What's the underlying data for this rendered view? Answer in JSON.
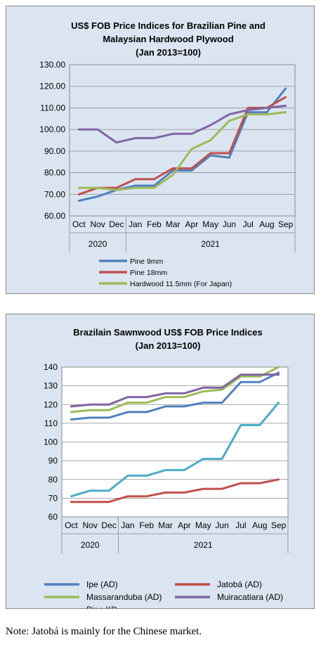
{
  "note": "Note: Jatobá is mainly for the Chinese market.",
  "chart_data": [
    {
      "type": "line",
      "title_lines": [
        "US$ FOB Price Indices for Brazilian Pine and",
        "Malaysian Hardwood Plywood",
        "(Jan 2013=100)"
      ],
      "categories": [
        "Oct",
        "Nov",
        "Dec",
        "Jan",
        "Feb",
        "Mar",
        "Apr",
        "May",
        "Jun",
        "Jul",
        "Aug",
        "Sep"
      ],
      "year_groups": [
        {
          "label": "2020",
          "span": 3
        },
        {
          "label": "2021",
          "span": 9
        }
      ],
      "ylim": [
        60,
        130
      ],
      "yticks": [
        "60.00",
        "70.00",
        "80.00",
        "90.00",
        "100.00",
        "110.00",
        "120.00",
        "130.00"
      ],
      "grid": true,
      "legend_position": "bottom",
      "series": [
        {
          "name": "Pine 9mm",
          "color": "#4f81bd",
          "values": [
            67,
            69,
            72,
            74,
            74,
            81,
            81,
            88,
            87,
            108,
            108,
            119
          ]
        },
        {
          "name": "Pine 18mm",
          "color": "#c0504d",
          "values": [
            70,
            73,
            73,
            77,
            77,
            82,
            82,
            89,
            89,
            110,
            110,
            115
          ]
        },
        {
          "name": "Hardwood 11.5mm (For Japan)",
          "color": "#9bbb59",
          "values": [
            73,
            73,
            72,
            73,
            73,
            79,
            91,
            95,
            104,
            107,
            107,
            108
          ]
        },
        {
          "name": "",
          "color": "#8064a2",
          "values": [
            100,
            100,
            94,
            96,
            96,
            98,
            98,
            102,
            107,
            109,
            110,
            111
          ]
        }
      ]
    },
    {
      "type": "line",
      "title_lines": [
        "Brazilain Sawnwood US$ FOB Price Indices",
        "(Jan 2013=100)"
      ],
      "categories": [
        "Oct",
        "Nov",
        "Dec",
        "Jan",
        "Feb",
        "Mar",
        "Apr",
        "May",
        "Jun",
        "Jul",
        "Aug",
        "Sep"
      ],
      "year_groups": [
        {
          "label": "2020",
          "span": 3
        },
        {
          "label": "2021",
          "span": 9
        }
      ],
      "ylim": [
        60,
        140
      ],
      "yticks": [
        "60",
        "70",
        "80",
        "90",
        "100",
        "110",
        "120",
        "130",
        "140"
      ],
      "grid": true,
      "legend_position": "bottom",
      "series": [
        {
          "name": "Ipe (AD)",
          "color": "#4f81bd",
          "values": [
            112,
            113,
            113,
            116,
            116,
            119,
            119,
            121,
            121,
            132,
            132,
            137
          ]
        },
        {
          "name": "Jatobá (AD)",
          "color": "#c0504d",
          "values": [
            68,
            68,
            68,
            71,
            71,
            73,
            73,
            75,
            75,
            78,
            78,
            80
          ]
        },
        {
          "name": "Massaranduba (AD)",
          "color": "#9bbb59",
          "values": [
            116,
            117,
            117,
            121,
            121,
            124,
            124,
            127,
            128,
            135,
            135,
            140
          ]
        },
        {
          "name": "Muiracatiara (AD)",
          "color": "#8064a2",
          "values": [
            119,
            120,
            120,
            124,
            124,
            126,
            126,
            129,
            129,
            136,
            136,
            136
          ]
        },
        {
          "name": "Pine KD",
          "color": "#4bacc6",
          "values": [
            71,
            74,
            74,
            82,
            82,
            85,
            85,
            91,
            91,
            109,
            109,
            121
          ]
        }
      ]
    }
  ]
}
